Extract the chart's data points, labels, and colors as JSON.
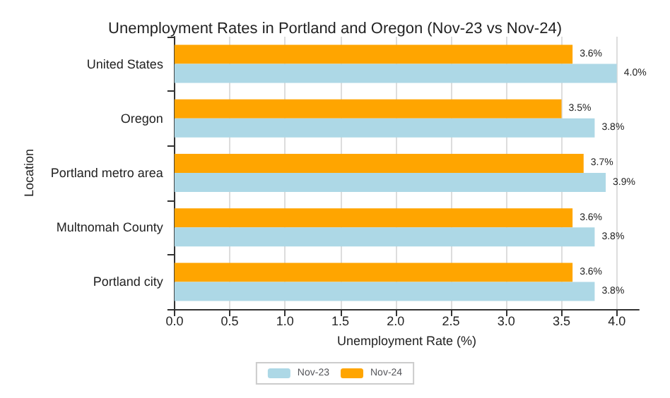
{
  "chart_data": {
    "type": "bar",
    "orientation": "horizontal",
    "title": "Unemployment Rates in Portland and Oregon (Nov-23 vs Nov-24)",
    "xlabel": "Unemployment Rate (%)",
    "ylabel": "Location",
    "categories": [
      "United States",
      "Oregon",
      "Portland metro area",
      "Multnomah County",
      "Portland city"
    ],
    "series": [
      {
        "name": "Nov-23",
        "color": "#add8e6",
        "values": [
          4.0,
          3.8,
          3.9,
          3.8,
          3.8
        ],
        "value_labels": [
          "4.0%",
          "3.8%",
          "3.9%",
          "3.8%",
          "3.8%"
        ]
      },
      {
        "name": "Nov-24",
        "color": "#ffa500",
        "values": [
          3.6,
          3.5,
          3.7,
          3.6,
          3.6
        ],
        "value_labels": [
          "3.6%",
          "3.5%",
          "3.7%",
          "3.6%",
          "3.6%"
        ]
      }
    ],
    "xlim": [
      0,
      4.2
    ],
    "xticks": [
      {
        "value": 0,
        "label": "0.0"
      },
      {
        "value": 0.5,
        "label": "0.5"
      },
      {
        "value": 1,
        "label": "1.0"
      },
      {
        "value": 1.5,
        "label": "1.5"
      },
      {
        "value": 2,
        "label": "2.0"
      },
      {
        "value": 2.5,
        "label": "2.5"
      },
      {
        "value": 3,
        "label": "3.0"
      },
      {
        "value": 3.5,
        "label": "3.5"
      },
      {
        "value": 4,
        "label": "4.0"
      }
    ],
    "grid": "x",
    "legend": "bottom"
  }
}
